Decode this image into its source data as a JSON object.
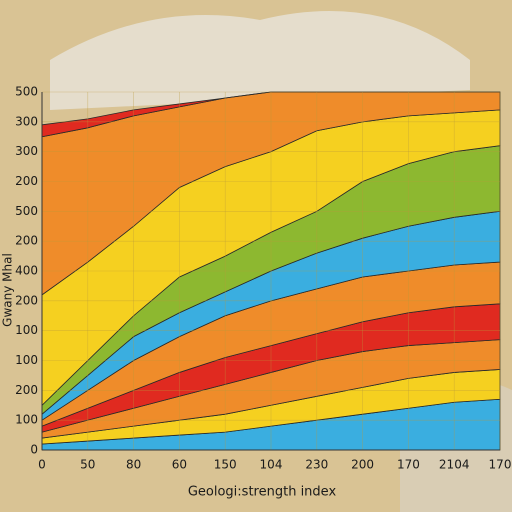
{
  "chart_data": {
    "type": "stacked_area",
    "x_label": "Geologi:strength index",
    "y_label": "Gwany Mhal",
    "xlim": [
      0,
      10
    ],
    "xticks": [
      0,
      {
        "value": 1,
        "label": "50"
      },
      {
        "value": 2,
        "label": "80"
      },
      {
        "value": 3,
        "label": "60"
      },
      {
        "value": 4,
        "label": "150"
      },
      {
        "value": 5,
        "label": "104"
      },
      {
        "value": 6,
        "label": "230"
      },
      {
        "value": 7,
        "label": "200"
      },
      {
        "value": 8,
        "label": "170"
      },
      {
        "value": 9,
        "label": "2104"
      },
      {
        "value": 10,
        "label": "170"
      }
    ],
    "ylim": [
      0,
      12
    ],
    "yticks": [
      0,
      {
        "value": 1,
        "label": "100"
      },
      {
        "value": 2,
        "label": "200"
      },
      {
        "value": 3,
        "label": "100"
      },
      {
        "value": 4,
        "label": "100"
      },
      {
        "value": 5,
        "label": "200"
      },
      {
        "value": 6,
        "label": "400"
      },
      {
        "value": 7,
        "label": "200"
      },
      {
        "value": 8,
        "label": "500"
      },
      {
        "value": 9,
        "label": "200"
      },
      {
        "value": 10,
        "label": "300"
      },
      {
        "value": 11,
        "label": "300"
      },
      {
        "value": 12,
        "label": "500"
      }
    ],
    "grid": true,
    "series": [
      {
        "color": "#3aaee0",
        "values": [
          0.2,
          0.3,
          0.4,
          0.5,
          0.6,
          0.8,
          1.0,
          1.2,
          1.4,
          1.6,
          1.7
        ]
      },
      {
        "color": "#f5d020",
        "values": [
          0.2,
          0.3,
          0.4,
          0.5,
          0.6,
          0.7,
          0.8,
          0.9,
          1.0,
          1.0,
          1.0
        ]
      },
      {
        "color": "#ef8c2a",
        "values": [
          0.2,
          0.4,
          0.6,
          0.8,
          1.0,
          1.1,
          1.2,
          1.2,
          1.1,
          1.0,
          1.0
        ]
      },
      {
        "color": "#e02a20",
        "values": [
          0.2,
          0.4,
          0.6,
          0.8,
          0.9,
          0.9,
          0.9,
          1.0,
          1.1,
          1.2,
          1.2
        ]
      },
      {
        "color": "#ef8c2a",
        "values": [
          0.2,
          0.6,
          1.0,
          1.2,
          1.4,
          1.5,
          1.5,
          1.5,
          1.4,
          1.4,
          1.4
        ]
      },
      {
        "color": "#3aaee0",
        "values": [
          0.2,
          0.5,
          0.8,
          0.8,
          0.8,
          1.0,
          1.2,
          1.3,
          1.5,
          1.6,
          1.7
        ]
      },
      {
        "color": "#8db830",
        "values": [
          0.3,
          0.5,
          0.7,
          1.2,
          1.2,
          1.3,
          1.4,
          1.9,
          2.1,
          2.2,
          2.2
        ]
      },
      {
        "color": "#f5d020",
        "values": [
          3.7,
          3.3,
          3.0,
          3.0,
          3.0,
          2.7,
          2.7,
          2.0,
          1.6,
          1.3,
          1.2
        ]
      },
      {
        "color": "#ef8c2a",
        "values": [
          5.3,
          4.5,
          3.7,
          2.7,
          2.3,
          2.0,
          1.3,
          1.0,
          0.8,
          0.7,
          0.6
        ]
      },
      {
        "color": "#e02a20",
        "values": [
          0.4,
          0.3,
          0.2,
          0.1,
          0,
          0,
          0,
          0,
          0,
          0,
          0
        ]
      }
    ]
  }
}
